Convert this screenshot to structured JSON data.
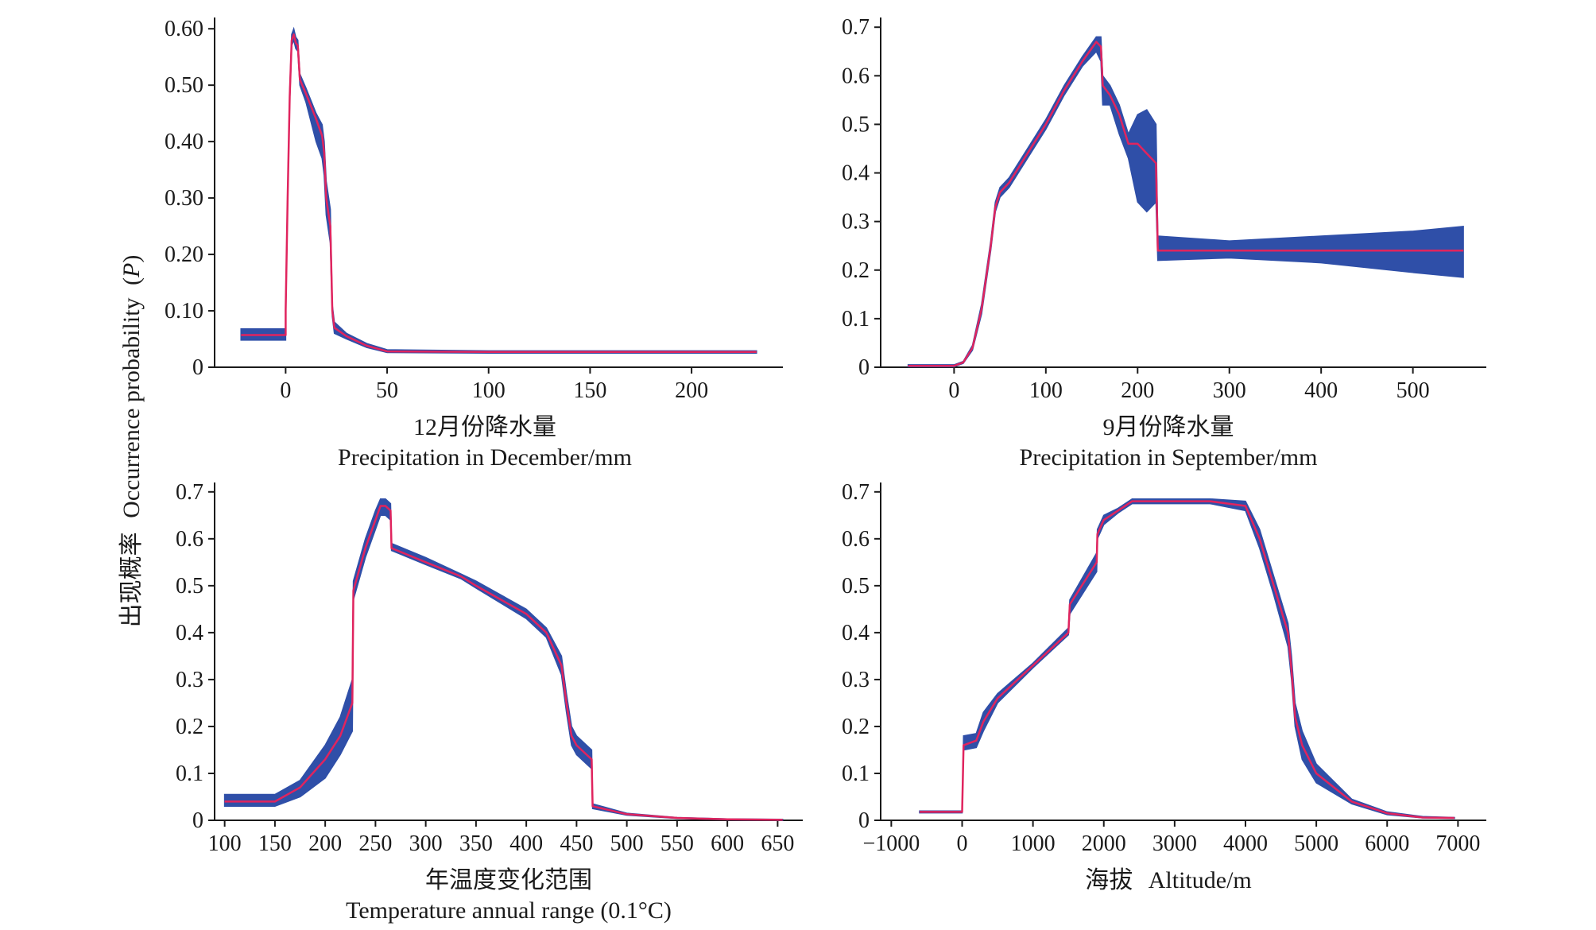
{
  "figure": {
    "ylabel_cn": "出现概率",
    "ylabel_en": "Occurrence probability",
    "ylabel_var": "P",
    "band_color": "#2f4fa8",
    "line_color": "#e0245e"
  },
  "chart_data": [
    {
      "type": "area",
      "xlabel_cn": "12月份降水量",
      "xlabel_en": "Precipitation in December/mm",
      "xlim": [
        -35,
        245
      ],
      "ylim": [
        0,
        0.62
      ],
      "xticks": [
        0,
        50,
        100,
        150,
        200
      ],
      "xtick_labels": [
        "0",
        "50",
        "100",
        "150",
        "200"
      ],
      "yticks": [
        0,
        0.1,
        0.2,
        0.3,
        0.4,
        0.5,
        0.6
      ],
      "ytick_labels": [
        "0",
        "0.10",
        "0.20",
        "0.30",
        "0.40",
        "0.50",
        "0.60"
      ],
      "series": [
        {
          "x": [
            -22,
            0,
            0,
            1,
            2,
            3,
            4,
            5,
            6,
            7,
            10,
            15,
            18,
            19,
            20,
            22,
            23,
            24,
            30,
            40,
            50,
            100,
            150,
            200,
            232
          ],
          "mean": [
            0.057,
            0.057,
            0.1,
            0.3,
            0.48,
            0.58,
            0.59,
            0.575,
            0.57,
            0.51,
            0.485,
            0.44,
            0.41,
            0.38,
            0.3,
            0.25,
            0.1,
            0.07,
            0.055,
            0.038,
            0.028,
            0.027,
            0.027,
            0.027,
            0.027
          ],
          "lower": [
            0.048,
            0.048,
            0.09,
            0.29,
            0.47,
            0.57,
            0.58,
            0.565,
            0.56,
            0.5,
            0.47,
            0.4,
            0.37,
            0.34,
            0.27,
            0.22,
            0.09,
            0.06,
            0.05,
            0.035,
            0.026,
            0.025,
            0.025,
            0.025,
            0.025
          ],
          "upper": [
            0.068,
            0.068,
            0.11,
            0.31,
            0.49,
            0.59,
            0.6,
            0.585,
            0.58,
            0.52,
            0.495,
            0.45,
            0.43,
            0.4,
            0.33,
            0.28,
            0.11,
            0.08,
            0.06,
            0.042,
            0.031,
            0.029,
            0.029,
            0.029,
            0.029
          ]
        }
      ]
    },
    {
      "type": "area",
      "xlabel_cn": "9月份降水量",
      "xlabel_en": "Precipitation in September/mm",
      "xlim": [
        -80,
        580
      ],
      "ylim": [
        0,
        0.72
      ],
      "xticks": [
        0,
        100,
        200,
        300,
        400,
        500
      ],
      "xtick_labels": [
        "0",
        "100",
        "200",
        "300",
        "400",
        "500"
      ],
      "yticks": [
        0,
        0.1,
        0.2,
        0.3,
        0.4,
        0.5,
        0.6,
        0.7
      ],
      "ytick_labels": [
        "0",
        "0.1",
        "0.2",
        "0.3",
        "0.4",
        "0.5",
        "0.6",
        "0.7"
      ],
      "series": [
        {
          "x": [
            -50,
            0,
            10,
            20,
            30,
            40,
            45,
            50,
            60,
            80,
            100,
            120,
            140,
            155,
            160,
            162,
            170,
            180,
            190,
            200,
            210,
            220,
            222,
            300,
            400,
            500,
            555
          ],
          "mean": [
            0.003,
            0.003,
            0.01,
            0.04,
            0.12,
            0.25,
            0.33,
            0.36,
            0.38,
            0.44,
            0.5,
            0.57,
            0.63,
            0.67,
            0.66,
            0.58,
            0.56,
            0.52,
            0.46,
            0.46,
            0.44,
            0.42,
            0.24,
            0.24,
            0.24,
            0.24,
            0.24
          ],
          "lower": [
            0.001,
            0.001,
            0.008,
            0.035,
            0.11,
            0.24,
            0.32,
            0.35,
            0.37,
            0.43,
            0.49,
            0.56,
            0.62,
            0.65,
            0.63,
            0.54,
            0.54,
            0.48,
            0.43,
            0.34,
            0.32,
            0.34,
            0.22,
            0.225,
            0.215,
            0.195,
            0.185
          ],
          "upper": [
            0.005,
            0.005,
            0.012,
            0.045,
            0.13,
            0.26,
            0.34,
            0.37,
            0.39,
            0.45,
            0.51,
            0.58,
            0.64,
            0.68,
            0.68,
            0.6,
            0.58,
            0.54,
            0.48,
            0.52,
            0.53,
            0.5,
            0.27,
            0.26,
            0.27,
            0.28,
            0.29
          ]
        }
      ]
    },
    {
      "type": "area",
      "xlabel_cn": "年温度变化范围",
      "xlabel_en": "Temperature annual range (0.1°C)",
      "xlim": [
        90,
        675
      ],
      "ylim": [
        0,
        0.72
      ],
      "xticks": [
        100,
        150,
        200,
        250,
        300,
        350,
        400,
        450,
        500,
        550,
        600,
        650
      ],
      "xtick_labels": [
        "100",
        "150",
        "200",
        "250",
        "300",
        "350",
        "400",
        "450",
        "500",
        "550",
        "600",
        "650"
      ],
      "yticks": [
        0,
        0.1,
        0.2,
        0.3,
        0.4,
        0.5,
        0.6,
        0.7
      ],
      "ytick_labels": [
        "0",
        "0.1",
        "0.2",
        "0.3",
        "0.4",
        "0.5",
        "0.6",
        "0.7"
      ],
      "series": [
        {
          "x": [
            100,
            150,
            175,
            200,
            215,
            227,
            228,
            240,
            250,
            255,
            260,
            265,
            266,
            300,
            335,
            350,
            400,
            420,
            435,
            440,
            445,
            450,
            460,
            465,
            466,
            500,
            550,
            600,
            655
          ],
          "mean": [
            0.04,
            0.04,
            0.07,
            0.13,
            0.18,
            0.25,
            0.49,
            0.58,
            0.64,
            0.67,
            0.67,
            0.66,
            0.58,
            0.55,
            0.52,
            0.5,
            0.44,
            0.4,
            0.33,
            0.25,
            0.18,
            0.16,
            0.14,
            0.13,
            0.03,
            0.013,
            0.005,
            0.002,
            0.001
          ],
          "lower": [
            0.03,
            0.03,
            0.05,
            0.09,
            0.14,
            0.19,
            0.47,
            0.56,
            0.62,
            0.65,
            0.65,
            0.64,
            0.575,
            0.545,
            0.515,
            0.495,
            0.43,
            0.39,
            0.31,
            0.23,
            0.16,
            0.14,
            0.12,
            0.11,
            0.025,
            0.011,
            0.004,
            0.001,
            0.0
          ],
          "upper": [
            0.055,
            0.055,
            0.085,
            0.16,
            0.22,
            0.3,
            0.51,
            0.6,
            0.66,
            0.685,
            0.685,
            0.675,
            0.59,
            0.56,
            0.525,
            0.51,
            0.45,
            0.41,
            0.35,
            0.27,
            0.2,
            0.18,
            0.16,
            0.15,
            0.035,
            0.015,
            0.006,
            0.003,
            0.002
          ]
        }
      ]
    },
    {
      "type": "area",
      "xlabel_cn": "海拔",
      "xlabel_en": "Altitude/m",
      "xlim": [
        -1150,
        7400
      ],
      "ylim": [
        0,
        0.72
      ],
      "xticks": [
        -1000,
        0,
        1000,
        2000,
        3000,
        4000,
        5000,
        6000,
        7000
      ],
      "xtick_labels": [
        "−1000",
        "0",
        "1000",
        "2000",
        "3000",
        "4000",
        "5000",
        "6000",
        "7000"
      ],
      "yticks": [
        0,
        0.1,
        0.2,
        0.3,
        0.4,
        0.5,
        0.6,
        0.7
      ],
      "ytick_labels": [
        "0",
        "0.1",
        "0.2",
        "0.3",
        "0.4",
        "0.5",
        "0.6",
        "0.7"
      ],
      "series": [
        {
          "x": [
            -600,
            0,
            20,
            200,
            300,
            500,
            1000,
            1500,
            1520,
            1900,
            1910,
            2000,
            2200,
            2400,
            3000,
            3500,
            4000,
            4200,
            4400,
            4600,
            4650,
            4700,
            4800,
            5000,
            5500,
            6000,
            6500,
            6950
          ],
          "mean": [
            0.018,
            0.018,
            0.16,
            0.17,
            0.21,
            0.26,
            0.33,
            0.4,
            0.46,
            0.55,
            0.61,
            0.64,
            0.66,
            0.68,
            0.68,
            0.68,
            0.67,
            0.6,
            0.5,
            0.4,
            0.32,
            0.22,
            0.16,
            0.1,
            0.04,
            0.015,
            0.006,
            0.005
          ],
          "lower": [
            0.016,
            0.016,
            0.15,
            0.155,
            0.19,
            0.25,
            0.325,
            0.395,
            0.44,
            0.53,
            0.6,
            0.63,
            0.655,
            0.675,
            0.675,
            0.675,
            0.66,
            0.58,
            0.48,
            0.37,
            0.3,
            0.2,
            0.13,
            0.08,
            0.035,
            0.012,
            0.005,
            0.004
          ],
          "upper": [
            0.02,
            0.02,
            0.18,
            0.185,
            0.23,
            0.27,
            0.335,
            0.41,
            0.47,
            0.57,
            0.62,
            0.65,
            0.665,
            0.685,
            0.685,
            0.685,
            0.68,
            0.62,
            0.52,
            0.42,
            0.35,
            0.25,
            0.19,
            0.12,
            0.045,
            0.018,
            0.008,
            0.006
          ]
        }
      ]
    }
  ]
}
